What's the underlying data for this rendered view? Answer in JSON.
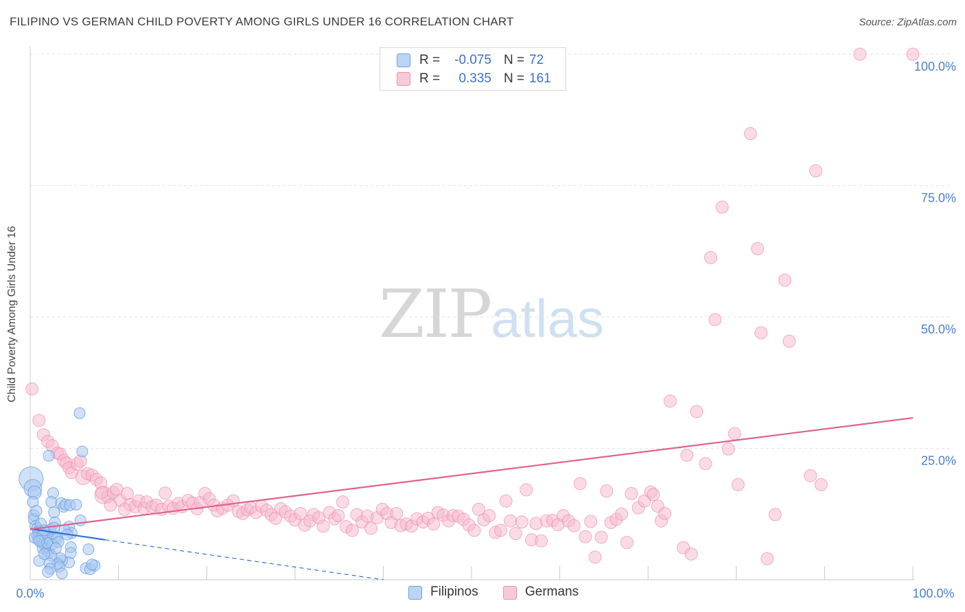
{
  "header": {
    "title": "FILIPINO VS GERMAN CHILD POVERTY AMONG GIRLS UNDER 16 CORRELATION CHART",
    "source": "Source: ZipAtlas.com"
  },
  "watermark": {
    "part1": "ZIP",
    "part2": "atlas"
  },
  "legend": {
    "rows": [
      {
        "r_label": "R =",
        "r_value": "-0.075",
        "n_label": "N =",
        "n_value": "72",
        "color": "#a9c8f0"
      },
      {
        "r_label": "R =",
        "r_value": "0.335",
        "n_label": "N =",
        "n_value": "161",
        "color": "#f5b8cc"
      }
    ]
  },
  "bottom_legend": [
    {
      "label": "Filipinos",
      "color": "#a9c8f0"
    },
    {
      "label": "Germans",
      "color": "#f5b8cc"
    }
  ],
  "chart_data": {
    "type": "scatter",
    "ylabel": "Child Poverty Among Girls Under 16",
    "xlim": [
      0,
      100
    ],
    "ylim": [
      0,
      100
    ],
    "x_tick_labels": [
      "0.0%",
      "100.0%"
    ],
    "y_ticks": [
      {
        "value": 25,
        "label": "25.0%"
      },
      {
        "value": 50,
        "label": "50.0%"
      },
      {
        "value": 75,
        "label": "75.0%"
      },
      {
        "value": 100,
        "label": "100.0%"
      }
    ],
    "grid": true,
    "colors": {
      "filipinos_fill": "#a9c8f0",
      "filipinos_stroke": "#6a9ee0",
      "filipinos_line": "#2f6fd6",
      "germans_fill": "#f5b8cc",
      "germans_stroke": "#ec8fae",
      "germans_line": "#e0608c",
      "tick_text": "#4a7fcf",
      "grid": "#e2e2e2"
    },
    "series": [
      {
        "name": "Filipinos",
        "trend": {
          "x0": 0,
          "y0": 9.7,
          "x1": 8.5,
          "y1": 7.6,
          "dash_to_x": 40,
          "dash_to_y": 0
        },
        "points": [
          [
            0.1,
            19.2,
            2.2
          ],
          [
            0.3,
            17.4,
            1.6
          ],
          [
            0.5,
            16.6,
            1.2
          ],
          [
            0.3,
            14.8,
            1
          ],
          [
            0.4,
            12.3,
            1
          ],
          [
            0.4,
            11.5,
            1
          ],
          [
            0.6,
            10.2,
            1
          ],
          [
            0.8,
            9.8,
            1
          ],
          [
            1.1,
            9.2,
            1
          ],
          [
            1.3,
            8.8,
            1
          ],
          [
            0.8,
            8.4,
            1
          ],
          [
            0.9,
            7.8,
            1
          ],
          [
            1.2,
            7.3,
            1
          ],
          [
            1.5,
            6.8,
            1
          ],
          [
            1.7,
            6.4,
            1
          ],
          [
            1.4,
            6.0,
            1
          ],
          [
            1.9,
            5.5,
            1
          ],
          [
            2.1,
            5.1,
            1
          ],
          [
            0.9,
            9.2,
            1
          ],
          [
            1.8,
            9.0,
            1
          ],
          [
            2.3,
            9.6,
            1
          ],
          [
            2.5,
            8.6,
            1
          ],
          [
            2.0,
            8.0,
            1
          ],
          [
            2.8,
            8.1,
            1
          ],
          [
            3.0,
            7.8,
            1
          ],
          [
            2.1,
            23.6,
            1
          ],
          [
            2.6,
            16.5,
            1
          ],
          [
            2.4,
            14.8,
            1
          ],
          [
            2.7,
            12.8,
            1
          ],
          [
            2.8,
            10.9,
            1
          ],
          [
            3.5,
            14.6,
            1
          ],
          [
            3.8,
            13.9,
            1
          ],
          [
            4.0,
            14.3,
            1
          ],
          [
            4.5,
            14.2,
            1
          ],
          [
            5.2,
            14.3,
            1
          ],
          [
            5.6,
            31.7,
            1
          ],
          [
            5.9,
            24.4,
            1
          ],
          [
            5.7,
            11.3,
            1
          ],
          [
            4.4,
            10.1,
            1
          ],
          [
            4.7,
            8.9,
            1
          ],
          [
            4.6,
            6.2,
            1
          ],
          [
            4.6,
            5.1,
            1
          ],
          [
            4.4,
            3.3,
            1
          ],
          [
            3.6,
            3.6,
            1
          ],
          [
            3.4,
            4.1,
            1
          ],
          [
            3.1,
            3.0,
            1
          ],
          [
            3.3,
            2.5,
            1
          ],
          [
            2.4,
            4.6,
            1
          ],
          [
            2.2,
            3.1,
            1
          ],
          [
            2.3,
            2.1,
            1
          ],
          [
            2.0,
            1.5,
            1
          ],
          [
            3.6,
            1.2,
            1
          ],
          [
            6.3,
            2.2,
            1
          ],
          [
            6.8,
            2.0,
            1
          ],
          [
            7.3,
            2.7,
            1
          ],
          [
            7.0,
            2.9,
            1
          ],
          [
            6.6,
            5.8,
            1
          ],
          [
            1.0,
            3.6,
            1
          ],
          [
            1.6,
            4.9,
            1
          ],
          [
            2.5,
            6.7,
            1
          ],
          [
            3.2,
            7.2,
            1
          ],
          [
            1.2,
            10.7,
            1
          ],
          [
            0.7,
            13.1,
            1
          ],
          [
            1.9,
            7.0,
            1
          ],
          [
            2.9,
            6.0,
            1
          ],
          [
            3.9,
            9.5,
            1
          ],
          [
            4.2,
            8.6,
            1
          ],
          [
            0.5,
            8.0,
            1
          ],
          [
            1.4,
            8.6,
            1
          ],
          [
            1.6,
            9.4,
            1
          ],
          [
            2.7,
            9.9,
            1
          ],
          [
            1.0,
            7.4,
            1
          ]
        ]
      },
      {
        "name": "Germans",
        "trend": {
          "x0": 0,
          "y0": 9.6,
          "x1": 100,
          "y1": 30.8
        },
        "points": [
          [
            0.2,
            36.3,
            1
          ],
          [
            1.0,
            30.3,
            1
          ],
          [
            1.5,
            27.6,
            1
          ],
          [
            2.0,
            26.3,
            1
          ],
          [
            2.5,
            25.5,
            1
          ],
          [
            3.1,
            24.1,
            1
          ],
          [
            3.4,
            23.9,
            1
          ],
          [
            3.8,
            22.7,
            1
          ],
          [
            4.1,
            22.2,
            1
          ],
          [
            4.4,
            21.3,
            1
          ],
          [
            4.7,
            20.4,
            1
          ],
          [
            5.3,
            22.0,
            1
          ],
          [
            5.7,
            22.6,
            1
          ],
          [
            6.0,
            19.5,
            1.2
          ],
          [
            6.5,
            20.2,
            1
          ],
          [
            7.0,
            19.9,
            1
          ],
          [
            7.5,
            19.1,
            1
          ],
          [
            8.0,
            18.4,
            1
          ],
          [
            8.3,
            16.1,
            1.4
          ],
          [
            8.8,
            15.8,
            1
          ],
          [
            9.4,
            16.6,
            1
          ],
          [
            9.8,
            17.2,
            1
          ],
          [
            10.2,
            15.1,
            1
          ],
          [
            11.0,
            16.4,
            1
          ],
          [
            11.3,
            14.3,
            1
          ],
          [
            11.9,
            13.9,
            1
          ],
          [
            12.3,
            15.0,
            1
          ],
          [
            12.9,
            13.6,
            1
          ],
          [
            13.2,
            14.8,
            1
          ],
          [
            13.8,
            13.9,
            1
          ],
          [
            14.3,
            14.2,
            1
          ],
          [
            14.9,
            13.4,
            1
          ],
          [
            15.3,
            16.5,
            1
          ],
          [
            15.7,
            14.0,
            1
          ],
          [
            16.2,
            13.6,
            1
          ],
          [
            16.8,
            14.5,
            1
          ],
          [
            17.2,
            13.9,
            1
          ],
          [
            17.9,
            15.1,
            1
          ],
          [
            18.4,
            14.6,
            1
          ],
          [
            18.9,
            13.5,
            1
          ],
          [
            19.3,
            14.7,
            1
          ],
          [
            19.8,
            16.4,
            1
          ],
          [
            20.3,
            15.4,
            1
          ],
          [
            20.8,
            14.2,
            1
          ],
          [
            21.2,
            13.1,
            1
          ],
          [
            21.8,
            13.6,
            1
          ],
          [
            22.4,
            14.2,
            1
          ],
          [
            23.0,
            15.0,
            1
          ],
          [
            23.6,
            13.0,
            1
          ],
          [
            24.1,
            12.6,
            1
          ],
          [
            24.6,
            13.3,
            1
          ],
          [
            25.0,
            13.7,
            1
          ],
          [
            25.6,
            12.8,
            1
          ],
          [
            26.2,
            14.0,
            1
          ],
          [
            26.8,
            13.2,
            1
          ],
          [
            27.3,
            12.4,
            1
          ],
          [
            27.8,
            11.7,
            1
          ],
          [
            28.4,
            13.5,
            1
          ],
          [
            28.9,
            12.9,
            1
          ],
          [
            29.5,
            12.1,
            1
          ],
          [
            30.0,
            11.4,
            1
          ],
          [
            30.6,
            12.6,
            1
          ],
          [
            31.1,
            10.4,
            1
          ],
          [
            31.7,
            11.2,
            1
          ],
          [
            32.1,
            12.4,
            1
          ],
          [
            32.7,
            11.8,
            1
          ],
          [
            33.2,
            10.2,
            1
          ],
          [
            33.9,
            12.8,
            1
          ],
          [
            34.5,
            11.6,
            1
          ],
          [
            34.9,
            12.2,
            1
          ],
          [
            35.4,
            14.8,
            1
          ],
          [
            35.8,
            10.1,
            1
          ],
          [
            36.5,
            9.4,
            1
          ],
          [
            37.0,
            12.4,
            1
          ],
          [
            37.6,
            11.0,
            1
          ],
          [
            38.2,
            12.1,
            1
          ],
          [
            38.6,
            9.8,
            1
          ],
          [
            39.3,
            11.8,
            1
          ],
          [
            39.9,
            13.4,
            1
          ],
          [
            40.4,
            12.6,
            1
          ],
          [
            40.9,
            10.9,
            1
          ],
          [
            41.5,
            12.6,
            1
          ],
          [
            42.0,
            10.3,
            1
          ],
          [
            42.6,
            10.6,
            1
          ],
          [
            43.2,
            10.2,
            1
          ],
          [
            43.8,
            11.6,
            1
          ],
          [
            44.5,
            11.0,
            1
          ],
          [
            45.1,
            11.7,
            1
          ],
          [
            45.7,
            10.6,
            1
          ],
          [
            46.2,
            12.8,
            1
          ],
          [
            46.8,
            12.3,
            1
          ],
          [
            47.4,
            11.2,
            1
          ],
          [
            47.9,
            12.2,
            1
          ],
          [
            48.5,
            12.1,
            1
          ],
          [
            49.1,
            11.5,
            1
          ],
          [
            49.7,
            10.4,
            1
          ],
          [
            50.3,
            9.4,
            1
          ],
          [
            50.8,
            13.4,
            1
          ],
          [
            51.4,
            11.4,
            1
          ],
          [
            52.0,
            12.2,
            1
          ],
          [
            52.7,
            9.0,
            1
          ],
          [
            53.3,
            9.4,
            1
          ],
          [
            53.9,
            15.0,
            1
          ],
          [
            54.4,
            11.2,
            1
          ],
          [
            55.0,
            8.8,
            1
          ],
          [
            55.7,
            11.0,
            1
          ],
          [
            56.2,
            17.1,
            1
          ],
          [
            56.8,
            7.6,
            1
          ],
          [
            57.3,
            10.7,
            1
          ],
          [
            57.9,
            7.4,
            1
          ],
          [
            58.5,
            11.2,
            1
          ],
          [
            59.2,
            11.3,
            1
          ],
          [
            59.8,
            10.5,
            1
          ],
          [
            60.4,
            12.2,
            1
          ],
          [
            61.0,
            11.2,
            1
          ],
          [
            61.6,
            10.3,
            1
          ],
          [
            62.3,
            18.3,
            1
          ],
          [
            62.9,
            8.2,
            1
          ],
          [
            63.5,
            11.1,
            1
          ],
          [
            64.0,
            4.3,
            1
          ],
          [
            64.7,
            8.1,
            1
          ],
          [
            65.3,
            16.9,
            1
          ],
          [
            65.8,
            10.9,
            1
          ],
          [
            66.4,
            11.5,
            1
          ],
          [
            67.0,
            12.5,
            1
          ],
          [
            67.6,
            7.1,
            1
          ],
          [
            68.1,
            16.4,
            1
          ],
          [
            68.9,
            13.7,
            1
          ],
          [
            69.6,
            15.0,
            1
          ],
          [
            70.3,
            16.7,
            1
          ],
          [
            70.6,
            16.2,
            1
          ],
          [
            71.1,
            14.0,
            1
          ],
          [
            71.5,
            11.2,
            1
          ],
          [
            71.9,
            12.6,
            1
          ],
          [
            72.5,
            34.0,
            1
          ],
          [
            74.0,
            6.1,
            1
          ],
          [
            74.4,
            23.7,
            1
          ],
          [
            74.9,
            4.9,
            1
          ],
          [
            75.5,
            32.0,
            1
          ],
          [
            76.5,
            22.1,
            1
          ],
          [
            77.1,
            61.3,
            1
          ],
          [
            77.6,
            49.5,
            1
          ],
          [
            78.4,
            70.9,
            1
          ],
          [
            79.1,
            24.9,
            1
          ],
          [
            79.8,
            27.8,
            1
          ],
          [
            80.2,
            18.1,
            1
          ],
          [
            81.6,
            84.9,
            1
          ],
          [
            82.4,
            63.0,
            1
          ],
          [
            82.8,
            47.0,
            1
          ],
          [
            83.5,
            4.0,
            1
          ],
          [
            84.4,
            12.4,
            1
          ],
          [
            85.5,
            57.0,
            1
          ],
          [
            86.0,
            45.4,
            1
          ],
          [
            88.4,
            19.8,
            1
          ],
          [
            89.6,
            18.1,
            1
          ],
          [
            89.0,
            77.8,
            1
          ],
          [
            94.0,
            100.0,
            1
          ],
          [
            100.0,
            100.0,
            1
          ],
          [
            8.1,
            16.6,
            1
          ],
          [
            9.1,
            14.2,
            1
          ],
          [
            10.7,
            13.4,
            1
          ]
        ]
      }
    ]
  }
}
